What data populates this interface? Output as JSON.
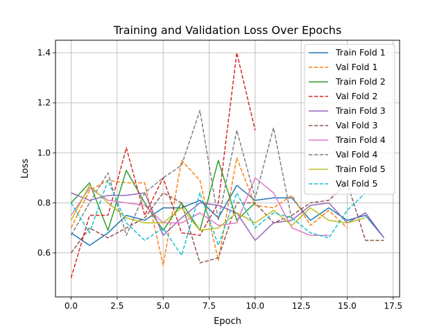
{
  "chart_data": {
    "type": "line",
    "title": "Training and Validation Loss Over Epochs",
    "xlabel": "Epoch",
    "ylabel": "Loss",
    "xlim": [
      -0.85,
      17.85
    ],
    "ylim": [
      0.424,
      1.45
    ],
    "xticks": [
      0.0,
      2.5,
      5.0,
      7.5,
      10.0,
      12.5,
      15.0,
      17.5
    ],
    "xtick_labels": [
      "0.0",
      "2.5",
      "5.0",
      "7.5",
      "10.0",
      "12.5",
      "15.0",
      "17.5"
    ],
    "yticks": [
      0.6,
      0.8,
      1.0,
      1.2,
      1.4
    ],
    "ytick_labels": [
      "0.6",
      "0.8",
      "1.0",
      "1.2",
      "1.4"
    ],
    "grid": true,
    "legend_position": "top-right",
    "series": [
      {
        "name": "Train Fold 1",
        "color": "#1f77b4",
        "dash": "solid",
        "x": [
          0,
          1,
          2,
          3,
          4,
          5,
          6,
          7,
          8,
          9,
          10,
          11,
          12,
          13,
          14,
          15,
          16,
          17
        ],
        "values": [
          0.68,
          0.63,
          0.68,
          0.75,
          0.73,
          0.78,
          0.78,
          0.81,
          0.74,
          0.87,
          0.81,
          0.82,
          0.82,
          0.73,
          0.78,
          0.73,
          0.75,
          0.66
        ]
      },
      {
        "name": "Val Fold 1",
        "color": "#ff7f0e",
        "dash": "dashed",
        "x": [
          0,
          1,
          2,
          3,
          4,
          5,
          6,
          7,
          8,
          9,
          10,
          11,
          12,
          13,
          14,
          15
        ],
        "values": [
          0.7,
          0.85,
          0.89,
          0.88,
          0.88,
          0.55,
          0.97,
          0.89,
          0.57,
          0.98,
          0.79,
          0.78,
          0.83,
          0.71,
          0.77,
          0.7
        ]
      },
      {
        "name": "Train Fold 2",
        "color": "#2ca02c",
        "dash": "solid",
        "x": [
          0,
          1,
          2,
          3,
          4,
          5,
          6,
          7,
          8,
          9,
          10
        ],
        "values": [
          0.8,
          0.88,
          0.69,
          0.93,
          0.8,
          0.69,
          0.8,
          0.69,
          0.97,
          0.73,
          0.8
        ]
      },
      {
        "name": "Val Fold 2",
        "color": "#d62728",
        "dash": "dashed",
        "x": [
          0,
          1,
          2,
          3,
          4,
          5,
          6,
          7,
          8,
          9,
          10
        ],
        "values": [
          0.5,
          0.75,
          0.75,
          1.02,
          0.75,
          0.9,
          0.68,
          0.67,
          0.8,
          1.4,
          1.09
        ]
      },
      {
        "name": "Train Fold 3",
        "color": "#9467bd",
        "dash": "solid",
        "x": [
          0,
          1,
          2,
          3,
          4,
          5,
          6,
          7,
          8,
          9,
          10,
          11,
          12,
          13,
          14,
          15,
          16,
          17
        ],
        "values": [
          0.84,
          0.81,
          0.83,
          0.83,
          0.84,
          0.67,
          0.74,
          0.8,
          0.79,
          0.76,
          0.65,
          0.72,
          0.73,
          0.79,
          0.8,
          0.72,
          0.76,
          0.66
        ]
      },
      {
        "name": "Val Fold 3",
        "color": "#8c564b",
        "dash": "dashed",
        "x": [
          0,
          1,
          2,
          3,
          4,
          5,
          6,
          7,
          8,
          9,
          10,
          11,
          12,
          13,
          14,
          15,
          16,
          17
        ],
        "values": [
          0.6,
          0.7,
          0.66,
          0.7,
          0.74,
          0.84,
          0.8,
          0.56,
          0.58,
          0.8,
          0.8,
          0.72,
          0.75,
          0.8,
          0.81,
          0.88,
          0.65,
          0.65
        ]
      },
      {
        "name": "Train Fold 4",
        "color": "#e377c2",
        "dash": "solid",
        "x": [
          0,
          1,
          2,
          3,
          4,
          5,
          6,
          7,
          8,
          9,
          10,
          11,
          12,
          13,
          14
        ],
        "values": [
          0.75,
          0.86,
          0.81,
          0.8,
          0.79,
          0.72,
          0.72,
          0.76,
          0.71,
          0.72,
          0.9,
          0.84,
          0.7,
          0.67,
          0.67
        ]
      },
      {
        "name": "Val Fold 4",
        "color": "#7f7f7f",
        "dash": "dashed",
        "x": [
          0,
          1,
          2,
          3,
          4,
          5,
          6,
          7,
          8,
          9,
          10,
          11,
          12
        ],
        "values": [
          0.67,
          0.8,
          0.92,
          0.67,
          0.84,
          0.9,
          0.95,
          1.17,
          0.73,
          1.09,
          0.82,
          1.1,
          0.73
        ]
      },
      {
        "name": "Train Fold 5",
        "color": "#bcbd22",
        "dash": "solid",
        "x": [
          0,
          1,
          2,
          3,
          4,
          5,
          6,
          7,
          8,
          9,
          10,
          11,
          12,
          13,
          14,
          15,
          16
        ],
        "values": [
          0.73,
          0.87,
          0.8,
          0.74,
          0.72,
          0.72,
          0.78,
          0.69,
          0.7,
          0.76,
          0.72,
          0.77,
          0.71,
          0.78,
          0.73,
          0.72,
          0.74
        ]
      },
      {
        "name": "Val Fold 5",
        "color": "#17becf",
        "dash": "dashed",
        "x": [
          0,
          1,
          2,
          3,
          4,
          5,
          6,
          7,
          8,
          9,
          10,
          11,
          12,
          13,
          14,
          15,
          16
        ],
        "values": [
          0.8,
          0.68,
          0.89,
          0.72,
          0.65,
          0.7,
          0.59,
          0.84,
          0.63,
          0.84,
          0.7,
          0.76,
          0.74,
          0.68,
          0.66,
          0.77,
          0.84
        ]
      }
    ]
  }
}
